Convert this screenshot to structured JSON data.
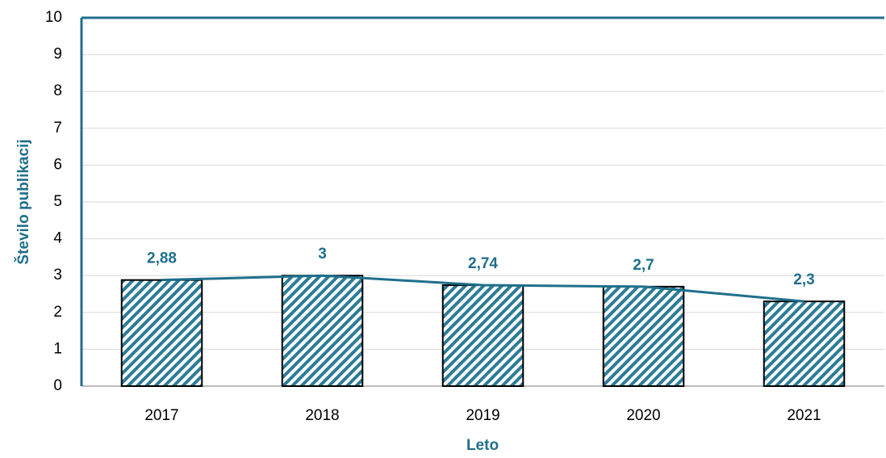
{
  "chart_data": {
    "type": "bar",
    "y_label": "Število publikacij",
    "x_label": "Leto",
    "categories": [
      "2017",
      "2018",
      "2019",
      "2020",
      "2021"
    ],
    "values": [
      2.88,
      3,
      2.74,
      2.7,
      2.3
    ],
    "value_labels": [
      "2,88",
      "3",
      "2,74",
      "2,7",
      "2,3"
    ],
    "color": "#2b7c97",
    "trend_line": true,
    "line_color": "#1f6f8b",
    "ylim": [
      0,
      10
    ],
    "yticks": [
      0,
      1,
      2,
      3,
      4,
      5,
      6,
      7,
      8,
      9,
      10
    ],
    "grid": true
  }
}
